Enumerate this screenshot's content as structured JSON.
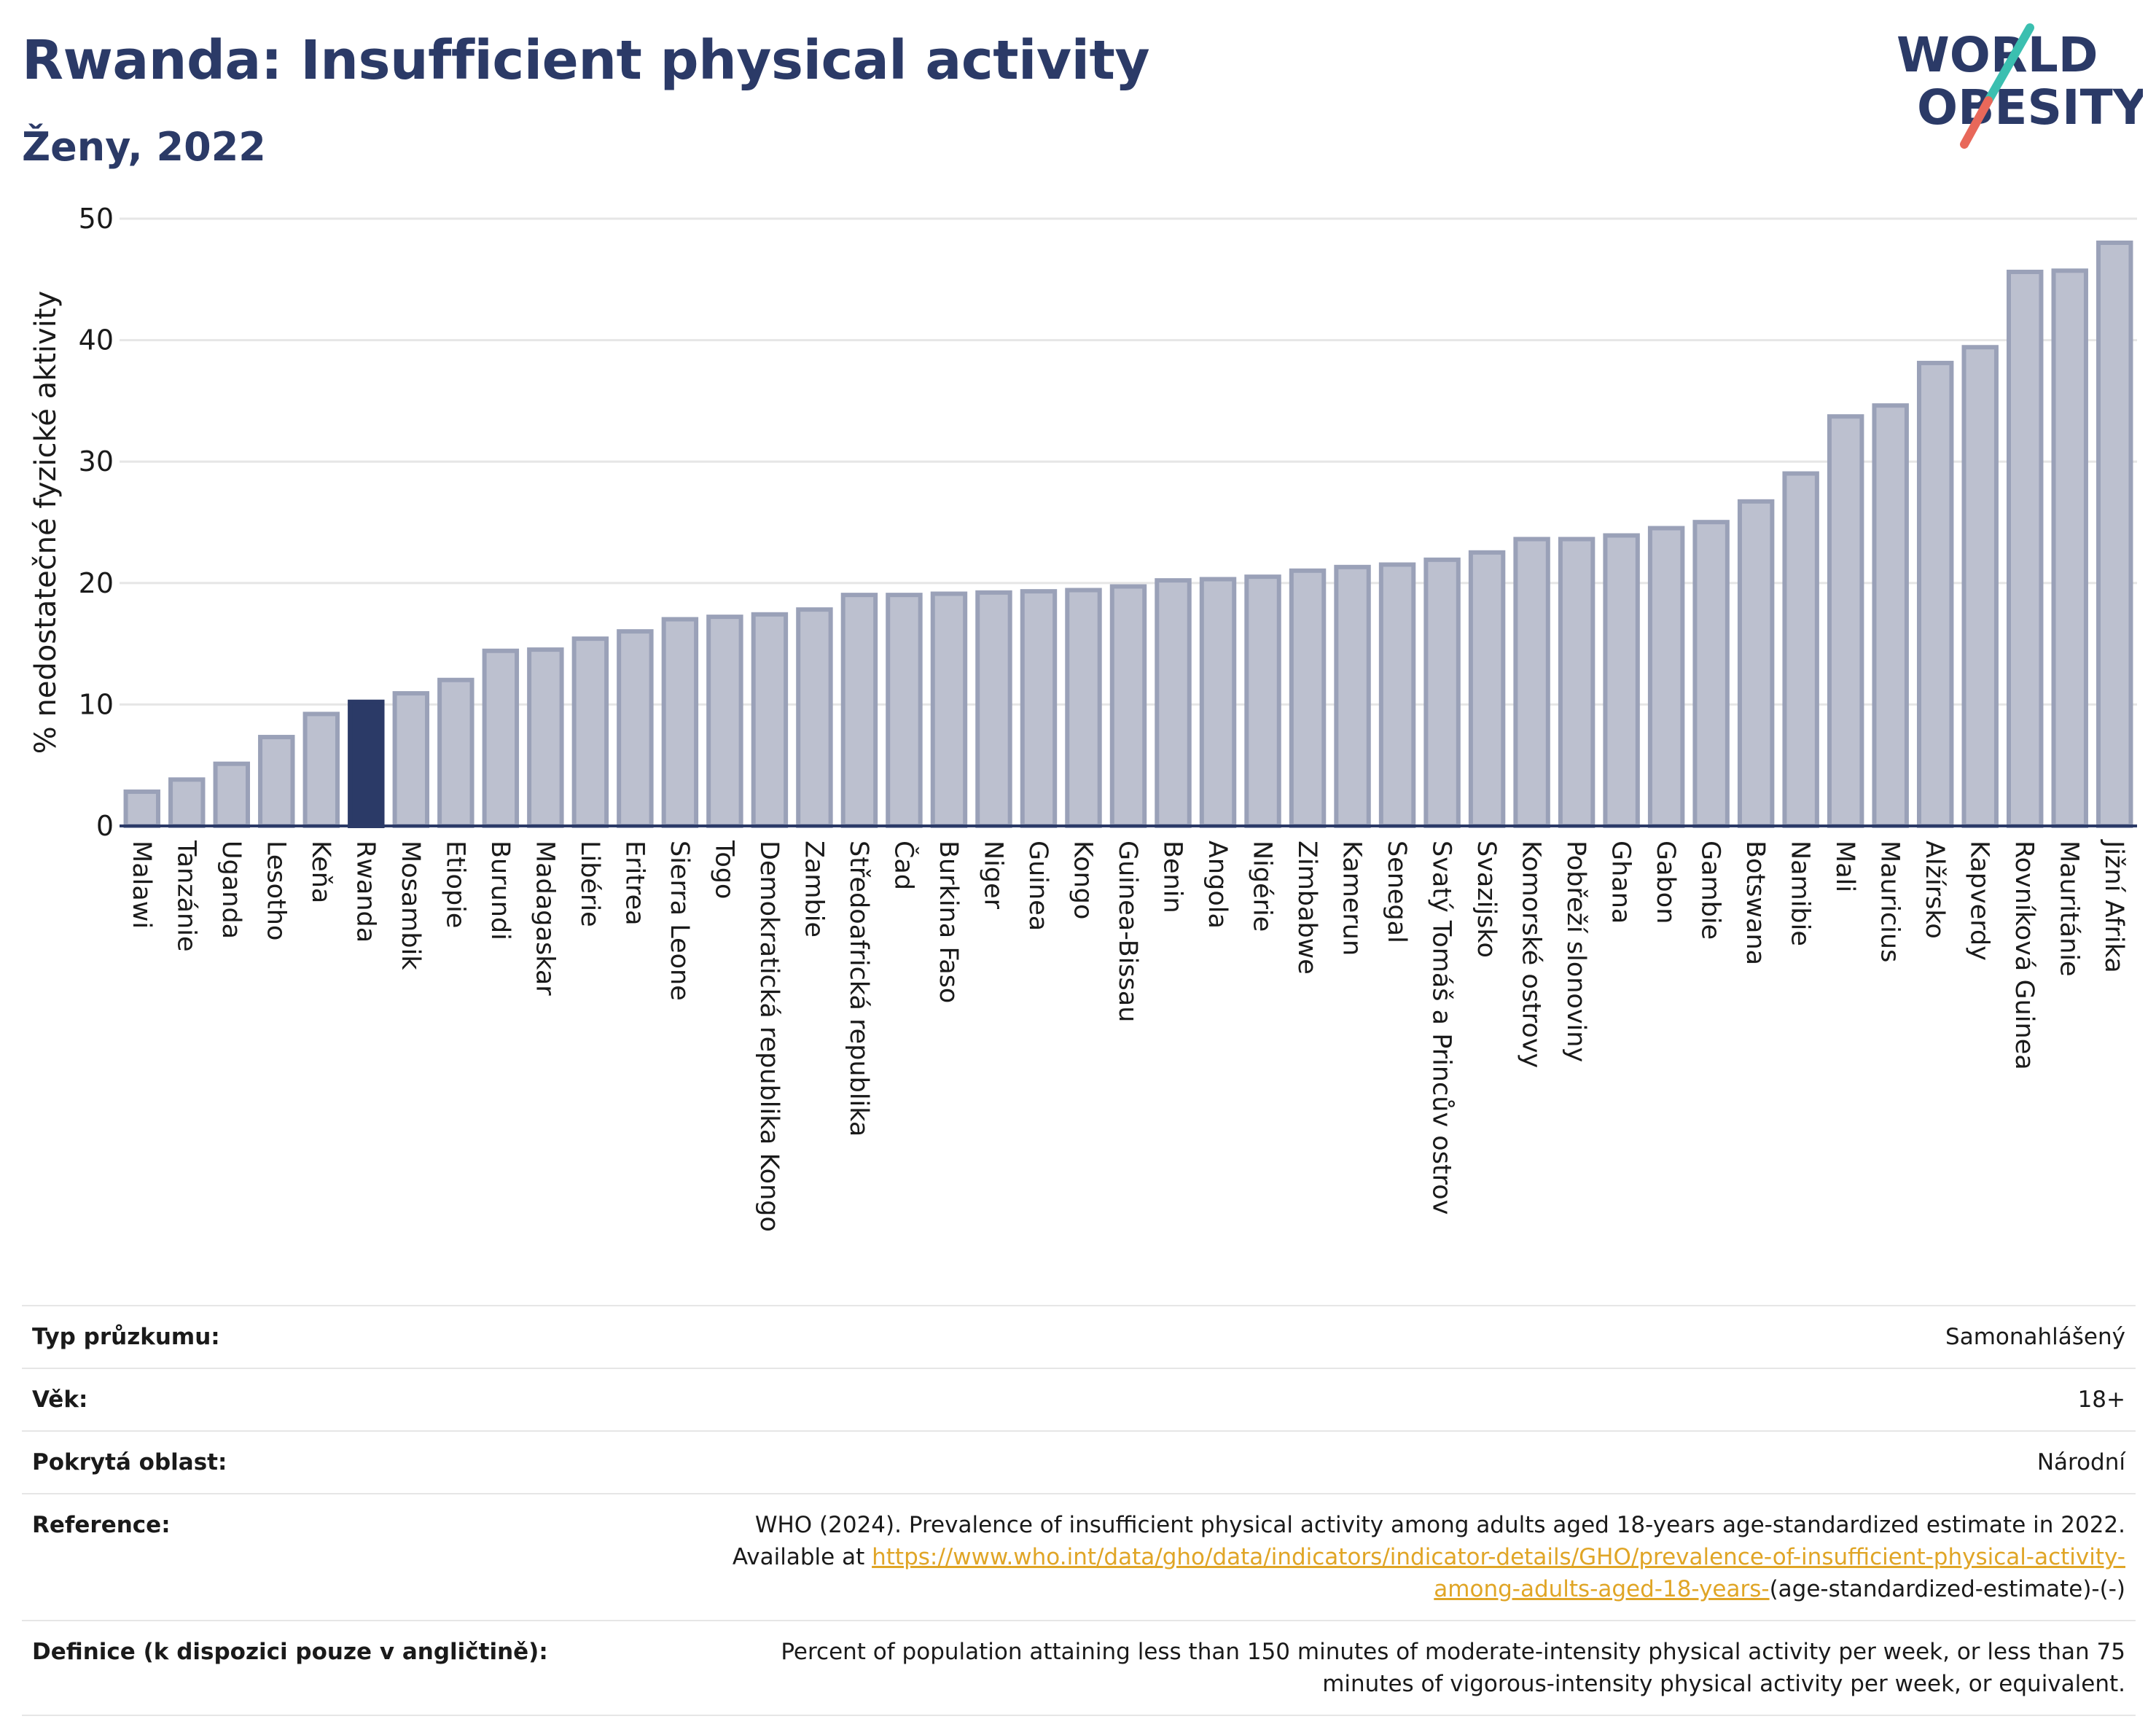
{
  "title": "Rwanda: Insufficient physical activity",
  "subtitle": "Ženy, 2022",
  "logo": {
    "line1": "WORLD",
    "line2": "OBESITY",
    "text_color": "#2b3a67",
    "slash_colors": [
      "#3bbfb0",
      "#e8685a"
    ]
  },
  "colors": {
    "bar": "#bcc0cf",
    "bar_border": "#9aa1b8",
    "highlight": "#2b3a67",
    "axis": "#2b3a67",
    "grid": "#e6e6e6"
  },
  "chart_data": {
    "type": "bar",
    "title": "Rwanda: Insufficient physical activity",
    "subtitle": "Ženy, 2022",
    "ylabel": "% nedostatečné fyzické aktivity",
    "xlabel": "",
    "ylim": [
      0,
      50
    ],
    "yticks": [
      0,
      10,
      20,
      30,
      40,
      50
    ],
    "grid": true,
    "highlight": "Rwanda",
    "categories": [
      "Malawi",
      "Tanzánie",
      "Uganda",
      "Lesotho",
      "Keňa",
      "Rwanda",
      "Mosambik",
      "Etiopie",
      "Burundi",
      "Madagaskar",
      "Libérie",
      "Eritrea",
      "Sierra Leone",
      "Togo",
      "Demokratická republika Kongo",
      "Zambie",
      "Středoafrická republika",
      "Čad",
      "Burkina Faso",
      "Niger",
      "Guinea",
      "Kongo",
      "Guinea-Bissau",
      "Benin",
      "Angola",
      "Nigérie",
      "Zimbabwe",
      "Kamerun",
      "Senegal",
      "Svatý Tomáš a Princův ostrov",
      "Svazijsko",
      "Komorské ostrovy",
      "Pobřeží slonoviny",
      "Ghana",
      "Gabon",
      "Gambie",
      "Botswana",
      "Namibie",
      "Mali",
      "Mauricius",
      "Alžírsko",
      "Kapverdy",
      "Rovníková Guinea",
      "Mauritánie",
      "Jižní Afrika"
    ],
    "values": [
      3.0,
      4.0,
      5.3,
      7.5,
      9.4,
      10.4,
      11.1,
      12.2,
      14.6,
      14.7,
      15.6,
      16.2,
      17.2,
      17.4,
      17.6,
      18.0,
      19.2,
      19.2,
      19.3,
      19.4,
      19.5,
      19.6,
      19.9,
      20.4,
      20.5,
      20.7,
      21.2,
      21.5,
      21.7,
      22.1,
      22.7,
      23.8,
      23.8,
      24.1,
      24.7,
      25.2,
      26.9,
      29.2,
      33.9,
      34.8,
      38.3,
      39.6,
      45.8,
      45.9,
      48.2
    ]
  },
  "info": [
    {
      "label": "Typ průzkumu:",
      "value": "Samonahlášený"
    },
    {
      "label": "Věk:",
      "value": "18+"
    },
    {
      "label": "Pokrytá oblast:",
      "value": "Národní"
    },
    {
      "label": "Reference:",
      "value": "WHO (2024). Prevalence of insufficient physical activity among adults aged 18-years age-standardized estimate in 2022. Available at",
      "link": "https://www.who.int/data/gho/data/indicators/indicator-details/GHO/prevalence-of-insufficient-physical-activity-among-adults-aged-18-years-",
      "suffix": "(age-standardized-estimate)-(-)"
    },
    {
      "label": "Definice (k dispozici pouze v angličtině):",
      "value": "Percent of population attaining less than 150 minutes of moderate-intensity physical activity per week, or less than 75 minutes of vigorous-intensity physical activity per week, or equivalent."
    }
  ]
}
